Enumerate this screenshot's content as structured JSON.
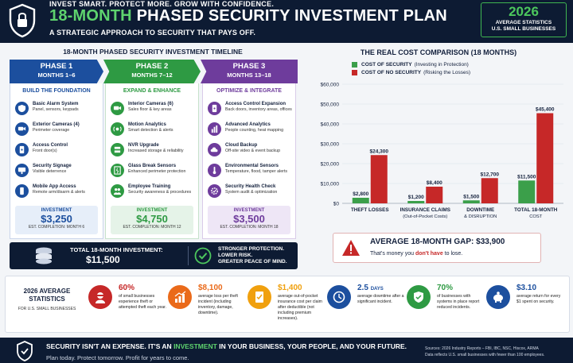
{
  "header": {
    "tagline": "INVEST SMART. PROTECT MORE. GROW WITH CONFIDENCE.",
    "title_prefix": "18-MONTH",
    "title_rest": " PHASED SECURITY INVESTMENT PLAN",
    "subtitle": "A STRATEGIC APPROACH TO SECURITY THAT PAYS OFF.",
    "year": "2026",
    "year_sub1": "AVERAGE STATISTICS",
    "year_sub2": "U.S. SMALL BUSINESSES",
    "icon": "shield-lock-icon"
  },
  "timeline": {
    "title": "18-MONTH PHASED SECURITY INVESTMENT TIMELINE",
    "phases": [
      {
        "name": "PHASE 1",
        "months": "MONTHS 1–6",
        "heading": "BUILD THE FOUNDATION",
        "color": "#1c4f9e",
        "items": [
          {
            "title": "Basic Alarm System",
            "desc": "Panel, sensors, keypads",
            "icon": "alarm-shield-icon"
          },
          {
            "title": "Exterior Cameras (4)",
            "desc": "Perimeter coverage",
            "icon": "camera-icon"
          },
          {
            "title": "Access Control",
            "desc": "Front door(s)",
            "icon": "keypad-icon"
          },
          {
            "title": "Security Signage",
            "desc": "Visible deterrence",
            "icon": "sign-icon"
          },
          {
            "title": "Mobile App Access",
            "desc": "Remote arm/disarm & alerts",
            "icon": "phone-icon"
          }
        ],
        "invest_label": "INVESTMENT",
        "invest_value": "$3,250",
        "completion": "EST. COMPLETION: MONTH 6"
      },
      {
        "name": "PHASE 2",
        "months": "MONTHS 7–12",
        "heading": "EXPAND & ENHANCE",
        "color": "#2e9a43",
        "items": [
          {
            "title": "Interior Cameras (6)",
            "desc": "Sales floor & key areas",
            "icon": "camera-icon"
          },
          {
            "title": "Motion Analytics",
            "desc": "Smart detection & alerts",
            "icon": "motion-icon"
          },
          {
            "title": "NVR Upgrade",
            "desc": "Increased storage & reliability",
            "icon": "storage-icon"
          },
          {
            "title": "Glass Break Sensors",
            "desc": "Enhanced perimeter protection",
            "icon": "glass-break-icon"
          },
          {
            "title": "Employee Training",
            "desc": "Security awareness & procedures",
            "icon": "people-icon"
          }
        ],
        "invest_label": "INVESTMENT",
        "invest_value": "$4,750",
        "completion": "EST. COMPLETION: MONTH 12"
      },
      {
        "name": "PHASE 3",
        "months": "MONTHS 13–18",
        "heading": "OPTIMIZE & INTEGRATE",
        "color": "#6e3c9c",
        "items": [
          {
            "title": "Access Control Expansion",
            "desc": "Back doors, inventory areas, offices",
            "icon": "keypad-icon"
          },
          {
            "title": "Advanced Analytics",
            "desc": "People counting, heat mapping",
            "icon": "analytics-icon"
          },
          {
            "title": "Cloud Backup",
            "desc": "Off-site video & event backup",
            "icon": "cloud-icon"
          },
          {
            "title": "Environmental Sensors",
            "desc": "Temperature, flood, tamper alerts",
            "icon": "thermometer-icon"
          },
          {
            "title": "Security Health Check",
            "desc": "System audit & optimization",
            "icon": "gear-check-icon"
          }
        ],
        "invest_label": "INVESTMENT",
        "invest_value": "$3,500",
        "completion": "EST. COMPLETION: MONTH 18"
      }
    ],
    "total_label": "TOTAL 18-MONTH INVESTMENT:",
    "total_value": "$11,500",
    "stronger_lines": [
      "STRONGER PROTECTION.",
      "LOWER RISK.",
      "GREATER PEACE OF MIND."
    ]
  },
  "chart_data": {
    "type": "bar",
    "title": "THE REAL COST COMPARISON (18 MONTHS)",
    "categories": [
      [
        "THEFT LOSSES"
      ],
      [
        "INSURANCE CLAIMS",
        "(Out-of-Pocket Costs)"
      ],
      [
        "DOWNTIME",
        "& DISRUPTION"
      ],
      [
        "TOTAL 18-MONTH",
        "COST"
      ]
    ],
    "series": [
      {
        "name": "COST OF SECURITY",
        "note": "(Investing in Protection)",
        "color": "#3b9f4a",
        "values": [
          2800,
          1200,
          1500,
          11500
        ],
        "labels": [
          "$2,800",
          "$1,200",
          "$1,500",
          "$11,500"
        ]
      },
      {
        "name": "COST OF NO SECURITY",
        "note": "(Risking the Losses)",
        "color": "#c62828",
        "values": [
          24300,
          8400,
          12700,
          45400
        ],
        "labels": [
          "$24,300",
          "$8,400",
          "$12,700",
          "$45,400"
        ]
      }
    ],
    "ylim": [
      0,
      60000
    ],
    "yticks": [
      "$0",
      "$10,000",
      "$20,000",
      "$30,000",
      "$40,000",
      "$50,000",
      "$60,000"
    ],
    "grid": true,
    "legend": "top-left"
  },
  "gap": {
    "title_label": "AVERAGE 18-MONTH GAP:",
    "title_value": "$33,900",
    "sub_pre": "That's money you ",
    "sub_red": "don't have",
    "sub_post": " to lose.",
    "icon": "warning-icon"
  },
  "stats": {
    "title": "2026 AVERAGE STATISTICS",
    "subtitle": "FOR U.S. SMALL BUSINESSES",
    "items": [
      {
        "value": "60%",
        "unit": "",
        "desc": "of small businesses experience theft or attempted theft each year.",
        "color": "#c62828",
        "icon": "thief-icon"
      },
      {
        "value": "$8,100",
        "unit": "",
        "desc": "average loss per theft incident (including inventory, damage, downtime).",
        "color": "#ea6a1a",
        "icon": "chart-up-icon"
      },
      {
        "value": "$1,400",
        "unit": "",
        "desc": "average out-of-pocket insurance cost per claim after deductible (not including premium increases).",
        "color": "#f0a00e",
        "icon": "insurance-doc-icon"
      },
      {
        "value": "2.5",
        "unit": "DAYS",
        "desc": "average downtime after a significant incident.",
        "color": "#1c4f9e",
        "icon": "clock-icon"
      },
      {
        "value": "70%",
        "unit": "",
        "desc": "of businesses with systems in place report reduced incidents.",
        "color": "#2e9a43",
        "icon": "shield-check-icon"
      },
      {
        "value": "$3.10",
        "unit": "",
        "desc": "average return for every $1 spent on security.",
        "color": "#1c4f9e",
        "icon": "piggy-bank-icon"
      }
    ]
  },
  "footer": {
    "main_pre": "SECURITY ISN'T AN EXPENSE. IT'S AN ",
    "main_green": "INVESTMENT",
    "main_post": " IN YOUR BUSINESS, YOUR PEOPLE, AND YOUR FUTURE.",
    "sub": "Plan today. Protect tomorrow. Profit for years to come.",
    "sources1": "Sources: 2026 Industry Reports – FBI, IBC, NSC, Hiscox, ARMA",
    "sources2": "Data reflects U.S. small businesses with fewer than 100 employees."
  }
}
